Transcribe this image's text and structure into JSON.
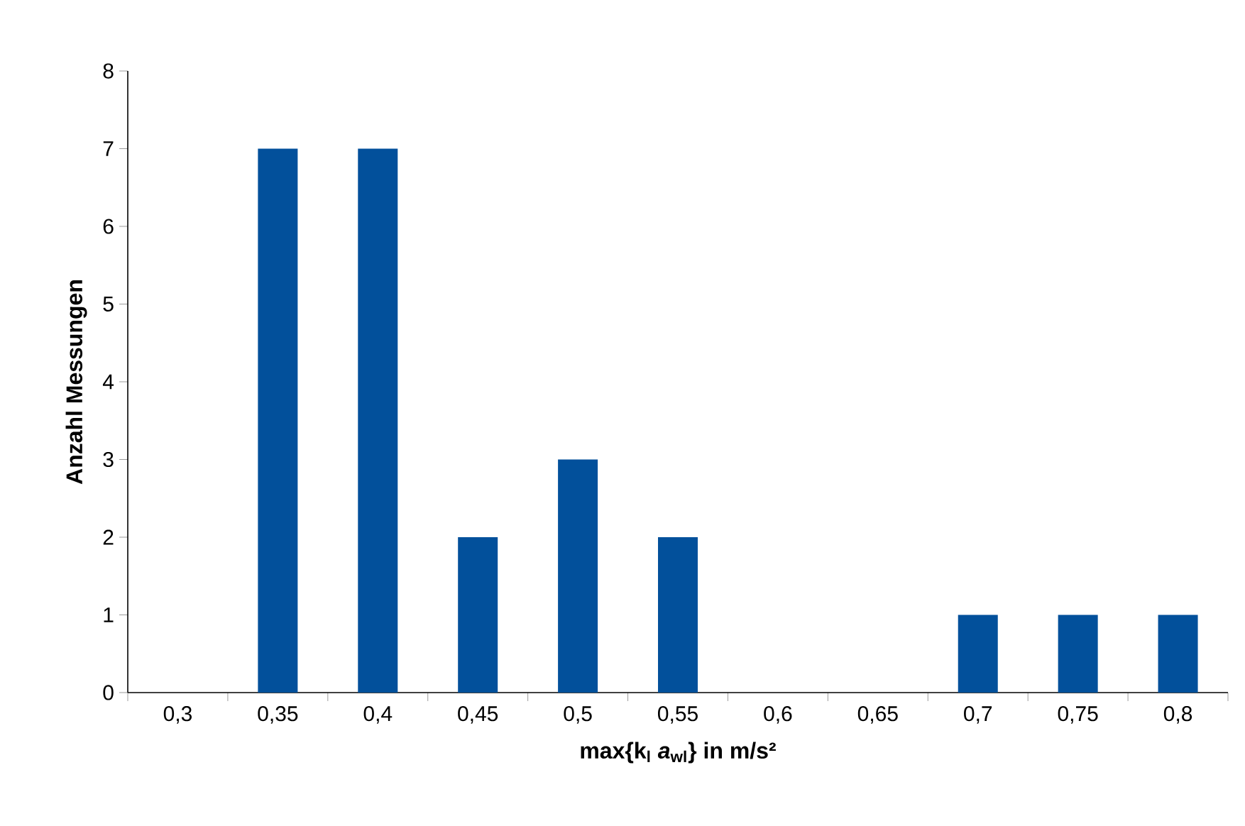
{
  "chart_data": {
    "type": "bar",
    "xlabel": "max{k$_{l}$ *a*$_{wl}$} in m/s²",
    "ylabel": "Anzahl Messungen",
    "categories": [
      "0,3",
      "0,35",
      "0,4",
      "0,45",
      "0,5",
      "0,55",
      "0,6",
      "0,65",
      "0,7",
      "0,75",
      "0,8"
    ],
    "values": [
      0,
      7,
      7,
      2,
      3,
      2,
      0,
      0,
      1,
      1,
      1
    ],
    "color": "#02509b",
    "ylim": [
      0,
      8
    ],
    "yticks": [
      0,
      1,
      2,
      3,
      4,
      5,
      6,
      7,
      8
    ],
    "grid": false
  }
}
